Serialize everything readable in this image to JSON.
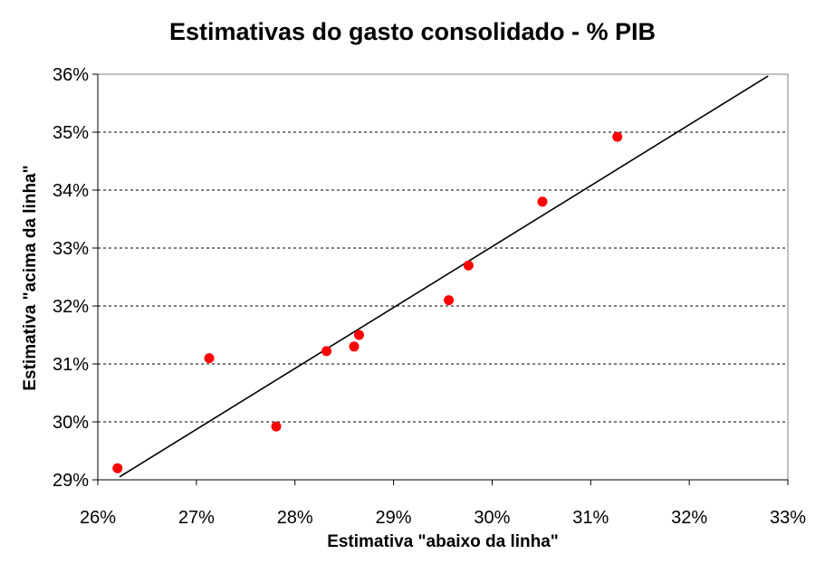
{
  "chart_data": {
    "type": "scatter",
    "title": "Estimativas do gasto consolidado - % PIB",
    "xlabel": "Estimativa \"abaixo da linha\"",
    "ylabel": "Estimativa \"acima da linha\"",
    "xlim": [
      26,
      33
    ],
    "ylim": [
      29,
      36
    ],
    "x_ticks": [
      "26%",
      "27%",
      "28%",
      "29%",
      "30%",
      "31%",
      "32%",
      "33%"
    ],
    "y_ticks": [
      "29%",
      "30%",
      "31%",
      "32%",
      "33%",
      "34%",
      "35%",
      "36%"
    ],
    "grid": "horizontal dashed",
    "series": [
      {
        "points": [
          {
            "x": 26.2,
            "y": 29.2
          },
          {
            "x": 27.13,
            "y": 31.1
          },
          {
            "x": 27.81,
            "y": 29.92
          },
          {
            "x": 28.32,
            "y": 31.22
          },
          {
            "x": 28.6,
            "y": 31.3
          },
          {
            "x": 28.65,
            "y": 31.5
          },
          {
            "x": 29.56,
            "y": 32.1
          },
          {
            "x": 29.76,
            "y": 32.7
          },
          {
            "x": 30.51,
            "y": 33.8
          },
          {
            "x": 31.27,
            "y": 34.92
          }
        ],
        "color": "#ff0000"
      }
    ],
    "reference_line": {
      "x": [
        26.22,
        32.8
      ],
      "y": [
        29.05,
        35.97
      ],
      "color": "#000000"
    }
  }
}
